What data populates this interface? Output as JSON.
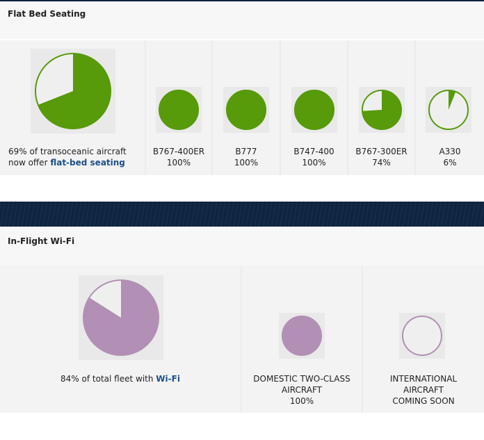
{
  "colors": {
    "green": "#579a0a",
    "purple": "#b28fb4",
    "pie_bg": "#efefef",
    "tile_bg": "#e9e9e9",
    "link": "#1d4f86"
  },
  "flat_bed": {
    "title": "Flat Bed Seating",
    "summary_prefix": "69% of transoceanic aircraft",
    "summary_line2_prefix": "now offer ",
    "summary_link": "flat-bed seating"
  },
  "wifi": {
    "title": "In-Flight Wi-Fi",
    "summary_prefix": "84% of total fleet with ",
    "summary_link": "Wi-Fi"
  },
  "chart_data": [
    {
      "type": "pie",
      "name": "Flat Bed Seating",
      "series": [
        {
          "label": "",
          "value": 69,
          "caption_lines": []
        },
        {
          "label": "B767-400ER",
          "value": 100,
          "caption_lines": [
            "B767-400ER",
            "100%"
          ]
        },
        {
          "label": "B777",
          "value": 100,
          "caption_lines": [
            "B777",
            "100%"
          ]
        },
        {
          "label": "B747-400",
          "value": 100,
          "caption_lines": [
            "B747-400",
            "100%"
          ]
        },
        {
          "label": "B767-300ER",
          "value": 74,
          "caption_lines": [
            "B767-300ER",
            "74%"
          ]
        },
        {
          "label": "A330",
          "value": 6,
          "caption_lines": [
            "A330",
            "6%"
          ]
        }
      ]
    },
    {
      "type": "pie",
      "name": "In-Flight Wi-Fi",
      "series": [
        {
          "label": "",
          "value": 84,
          "caption_lines": []
        },
        {
          "label": "DOMESTIC TWO-CLASS AIRCRAFT",
          "value": 100,
          "caption_lines": [
            "DOMESTIC TWO-CLASS",
            "AIRCRAFT",
            "100%"
          ]
        },
        {
          "label": "INTERNATIONAL AIRCRAFT",
          "value": 0,
          "caption_lines": [
            "INTERNATIONAL",
            "AIRCRAFT",
            "COMING SOON"
          ]
        }
      ]
    }
  ]
}
